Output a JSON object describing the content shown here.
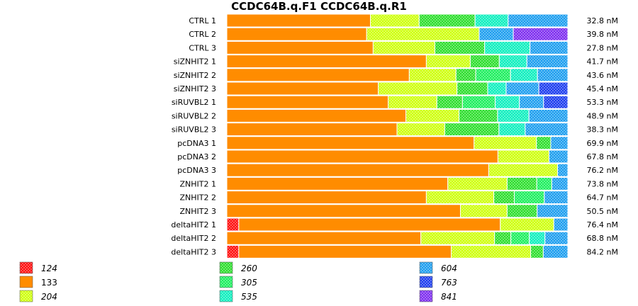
{
  "chart_data": {
    "type": "bar",
    "orientation": "horizontal",
    "stacked": true,
    "normalized": true,
    "title": "CCDC64B.q.F1  CCDC64B.q.R1",
    "categories": [
      "CTRL 1",
      "CTRL 2",
      "CTRL 3",
      "siZNHIT2 1",
      "siZNHIT2 2",
      "siZNHIT2 3",
      "siRUVBL2 1",
      "siRUVBL2 2",
      "siRUVBL2 3",
      "pcDNA3 1",
      "pcDNA3 2",
      "pcDNA3 3",
      "ZNHIT2 1",
      "ZNHIT2 2",
      "ZNHIT2 3",
      "deltaHIT2 1",
      "deltaHIT2 2",
      "deltaHIT2 3"
    ],
    "concentrations": [
      "32.8 nM",
      "39.8 nM",
      "27.8 nM",
      "41.7 nM",
      "43.6 nM",
      "45.4 nM",
      "53.3 nM",
      "48.9 nM",
      "38.3 nM",
      "69.9 nM",
      "67.8 nM",
      "76.2 nM",
      "73.8 nM",
      "64.7 nM",
      "50.5 nM",
      "76.4 nM",
      "68.8 nM",
      "84.2 nM"
    ],
    "legend": [
      {
        "label": "124",
        "color": "#ff0000",
        "hatched": true,
        "italic": true
      },
      {
        "label": "133",
        "color": "#ff8c00",
        "hatched": false,
        "italic": false
      },
      {
        "label": "204",
        "color": "#ccff00",
        "hatched": true,
        "italic": true
      },
      {
        "label": "260",
        "color": "#22dd22",
        "hatched": true,
        "italic": true
      },
      {
        "label": "305",
        "color": "#11ee55",
        "hatched": true,
        "italic": true
      },
      {
        "label": "535",
        "color": "#00eebb",
        "hatched": true,
        "italic": true
      },
      {
        "label": "604",
        "color": "#1199ee",
        "hatched": true,
        "italic": true
      },
      {
        "label": "763",
        "color": "#1133ee",
        "hatched": true,
        "italic": true
      },
      {
        "label": "841",
        "color": "#7722ee",
        "hatched": true,
        "italic": true
      }
    ],
    "rows": [
      {
        "segments": [
          [
            "133",
            42.1
          ],
          [
            "204",
            14.3
          ],
          [
            "260",
            16.4
          ],
          [
            "535",
            9.7
          ],
          [
            "604",
            17.5
          ]
        ]
      },
      {
        "segments": [
          [
            "133",
            41.0
          ],
          [
            "204",
            33.0
          ],
          [
            "604",
            10.0
          ],
          [
            "841",
            16.0
          ]
        ]
      },
      {
        "segments": [
          [
            "133",
            42.9
          ],
          [
            "204",
            18.1
          ],
          [
            "260",
            14.6
          ],
          [
            "535",
            13.3
          ],
          [
            "604",
            11.1
          ]
        ]
      },
      {
        "segments": [
          [
            "133",
            58.5
          ],
          [
            "204",
            12.9
          ],
          [
            "260",
            8.5
          ],
          [
            "535",
            8.1
          ],
          [
            "604",
            12.0
          ]
        ]
      },
      {
        "segments": [
          [
            "133",
            53.5
          ],
          [
            "204",
            13.7
          ],
          [
            "260",
            5.8
          ],
          [
            "305",
            10.2
          ],
          [
            "535",
            7.9
          ],
          [
            "604",
            8.9
          ]
        ]
      },
      {
        "segments": [
          [
            "133",
            44.4
          ],
          [
            "204",
            23.1
          ],
          [
            "260",
            9.0
          ],
          [
            "535",
            5.4
          ],
          [
            "604",
            9.6
          ],
          [
            "763",
            8.5
          ]
        ]
      },
      {
        "segments": [
          [
            "133",
            47.3
          ],
          [
            "204",
            14.3
          ],
          [
            "260",
            7.5
          ],
          [
            "305",
            9.6
          ],
          [
            "535",
            7.1
          ],
          [
            "604",
            7.1
          ],
          [
            "763",
            7.1
          ]
        ]
      },
      {
        "segments": [
          [
            "133",
            52.5
          ],
          [
            "204",
            15.6
          ],
          [
            "260",
            11.3
          ],
          [
            "535",
            9.2
          ],
          [
            "604",
            11.4
          ]
        ]
      },
      {
        "segments": [
          [
            "133",
            49.9
          ],
          [
            "204",
            14.0
          ],
          [
            "260",
            15.9
          ],
          [
            "535",
            7.7
          ],
          [
            "604",
            12.5
          ]
        ]
      },
      {
        "segments": [
          [
            "133",
            72.5
          ],
          [
            "204",
            18.3
          ],
          [
            "260",
            4.2
          ],
          [
            "604",
            5.0
          ]
        ]
      },
      {
        "segments": [
          [
            "133",
            79.5
          ],
          [
            "204",
            15.0
          ],
          [
            "604",
            5.5
          ]
        ]
      },
      {
        "segments": [
          [
            "133",
            76.8
          ],
          [
            "204",
            20.2
          ],
          [
            "604",
            3.0
          ]
        ]
      },
      {
        "segments": [
          [
            "133",
            64.8
          ],
          [
            "204",
            17.4
          ],
          [
            "260",
            8.7
          ],
          [
            "305",
            4.4
          ],
          [
            "604",
            4.7
          ]
        ]
      },
      {
        "segments": [
          [
            "133",
            58.5
          ],
          [
            "204",
            19.8
          ],
          [
            "260",
            6.0
          ],
          [
            "305",
            8.8
          ],
          [
            "604",
            6.9
          ]
        ]
      },
      {
        "segments": [
          [
            "133",
            68.5
          ],
          [
            "204",
            13.7
          ],
          [
            "260",
            8.8
          ],
          [
            "604",
            9.0
          ]
        ]
      },
      {
        "segments": [
          [
            "124",
            3.5
          ],
          [
            "133",
            76.7
          ],
          [
            "204",
            15.7
          ],
          [
            "604",
            4.1
          ]
        ]
      },
      {
        "segments": [
          [
            "133",
            56.9
          ],
          [
            "204",
            21.6
          ],
          [
            "260",
            4.8
          ],
          [
            "305",
            5.4
          ],
          [
            "535",
            4.6
          ],
          [
            "604",
            6.7
          ]
        ]
      },
      {
        "segments": [
          [
            "124",
            3.5
          ],
          [
            "133",
            62.3
          ],
          [
            "204",
            23.3
          ],
          [
            "260",
            3.7
          ],
          [
            "604",
            7.2
          ]
        ]
      }
    ]
  }
}
